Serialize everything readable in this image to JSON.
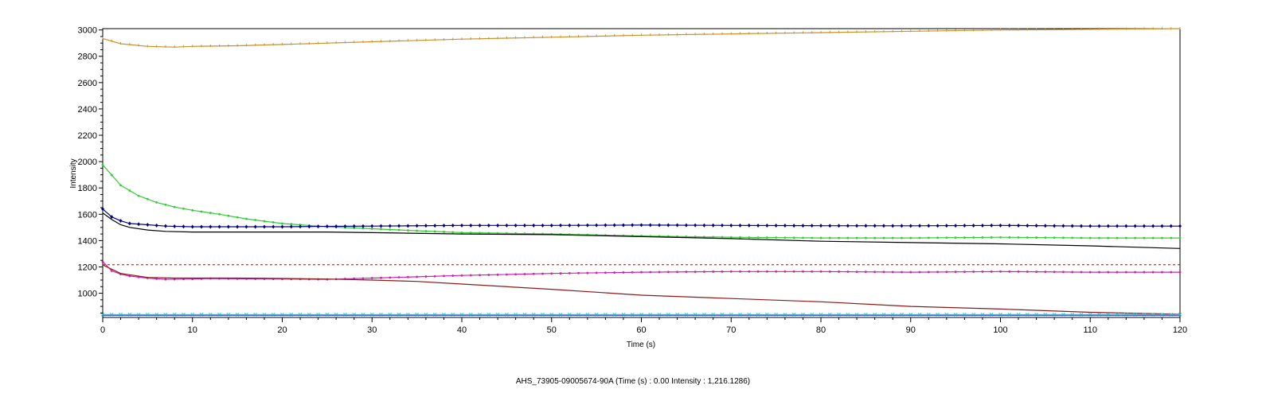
{
  "chart_data": {
    "type": "line",
    "xlabel": "Time (s)",
    "ylabel": "Intensity",
    "xlim": [
      0,
      120
    ],
    "ylim": [
      816,
      3010
    ],
    "x_ticks": [
      0,
      10,
      20,
      30,
      40,
      50,
      60,
      70,
      80,
      90,
      100,
      110,
      120
    ],
    "y_ticks": [
      1000,
      1200,
      1400,
      1600,
      1800,
      2000,
      2200,
      2400,
      2600,
      2800,
      3000
    ],
    "grid": false,
    "legend": "none",
    "reference_line": {
      "y": 1216.1286,
      "color": "#8b1a1a",
      "style": "dashed"
    },
    "series": [
      {
        "color": "#c8912a",
        "marker": "tick",
        "x": [
          0,
          2,
          5,
          8,
          10,
          15,
          20,
          25,
          30,
          40,
          50,
          60,
          70,
          80,
          90,
          100,
          110,
          120
        ],
        "y": [
          2935,
          2895,
          2875,
          2870,
          2875,
          2880,
          2890,
          2900,
          2910,
          2930,
          2945,
          2960,
          2970,
          2980,
          2990,
          3000,
          3005,
          3010
        ]
      },
      {
        "color": "#33cc33",
        "marker": "dot",
        "x": [
          0,
          2,
          4,
          6,
          8,
          10,
          13,
          16,
          20,
          25,
          30,
          35,
          40,
          50,
          60,
          70,
          80,
          90,
          100,
          110,
          120
        ],
        "y": [
          1975,
          1820,
          1740,
          1690,
          1655,
          1630,
          1600,
          1565,
          1530,
          1505,
          1490,
          1475,
          1460,
          1450,
          1435,
          1425,
          1420,
          1420,
          1425,
          1420,
          1420
        ]
      },
      {
        "color": "#000080",
        "marker": "diamond",
        "x": [
          0,
          1,
          2,
          3,
          5,
          7,
          10,
          15,
          20,
          25,
          30,
          40,
          50,
          60,
          70,
          80,
          90,
          100,
          110,
          120
        ],
        "y": [
          1640,
          1580,
          1550,
          1530,
          1520,
          1510,
          1505,
          1505,
          1505,
          1508,
          1510,
          1515,
          1515,
          1518,
          1515,
          1513,
          1512,
          1515,
          1510,
          1510
        ]
      },
      {
        "color": "#000000",
        "marker": "none",
        "x": [
          0,
          1,
          2,
          3,
          5,
          7,
          10,
          15,
          20,
          25,
          30,
          40,
          50,
          60,
          70,
          80,
          90,
          100,
          110,
          120
        ],
        "y": [
          1610,
          1560,
          1520,
          1500,
          1480,
          1470,
          1465,
          1465,
          1465,
          1465,
          1460,
          1450,
          1445,
          1430,
          1415,
          1395,
          1385,
          1375,
          1360,
          1340
        ]
      },
      {
        "color": "#cc22aa",
        "marker": "dot",
        "x": [
          0,
          1,
          2,
          3,
          5,
          7,
          10,
          12,
          15,
          20,
          25,
          30,
          35,
          40,
          50,
          60,
          70,
          80,
          90,
          100,
          110,
          120
        ],
        "y": [
          1240,
          1170,
          1145,
          1130,
          1115,
          1105,
          1108,
          1112,
          1110,
          1108,
          1105,
          1115,
          1125,
          1135,
          1150,
          1160,
          1165,
          1165,
          1160,
          1165,
          1160,
          1160
        ]
      },
      {
        "color": "#8b1a1a",
        "marker": "none",
        "x": [
          0,
          2,
          5,
          8,
          10,
          15,
          20,
          25,
          30,
          35,
          40,
          50,
          60,
          70,
          80,
          90,
          100,
          110,
          120
        ],
        "y": [
          1215,
          1150,
          1120,
          1115,
          1115,
          1115,
          1112,
          1108,
          1100,
          1090,
          1070,
          1030,
          985,
          960,
          935,
          900,
          880,
          855,
          840
        ]
      },
      {
        "color": "#33cccc",
        "marker": "x",
        "x": [
          0,
          120
        ],
        "y": [
          838,
          838
        ]
      },
      {
        "color": "#3366ff",
        "marker": "none",
        "x": [
          0,
          120
        ],
        "y": [
          832,
          832
        ]
      }
    ]
  },
  "status": {
    "text": "AHS_73905-09005674-90A (Time (s) : 0.00  Intensity : 1,216.1286)"
  }
}
